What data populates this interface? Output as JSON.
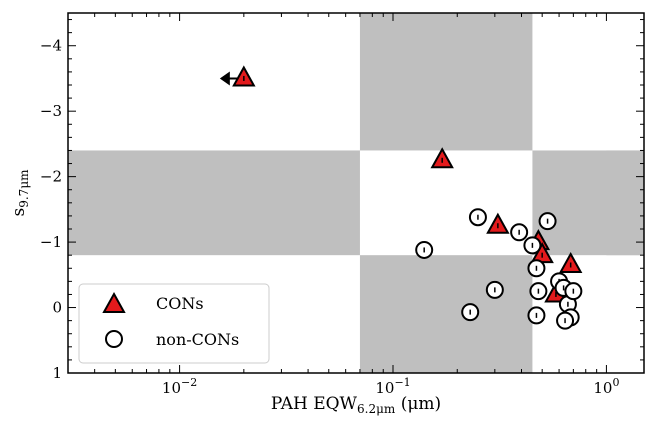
{
  "chart_data": {
    "type": "scatter",
    "xlabel": {
      "main": "PAH EQW",
      "sub": "6.2μm",
      "unit": " (μm)"
    },
    "ylabel": {
      "main": "s",
      "sub": "9.7μm"
    },
    "x_scale": "log",
    "xlim": [
      0.003,
      1.5
    ],
    "ylim": [
      1,
      -4.5
    ],
    "x_ticks": [
      {
        "value": 0.01,
        "base": "10",
        "exp": "−2"
      },
      {
        "value": 0.1,
        "base": "10",
        "exp": "−1"
      },
      {
        "value": 1,
        "base": "10",
        "exp": "0"
      }
    ],
    "y_ticks": [
      {
        "value": -4,
        "label": "−4"
      },
      {
        "value": -3,
        "label": "−3"
      },
      {
        "value": -2,
        "label": "−2"
      },
      {
        "value": -1,
        "label": "−1"
      },
      {
        "value": 0,
        "label": "0"
      },
      {
        "value": 1,
        "label": "1"
      }
    ],
    "shaded_regions": [
      {
        "x": [
          0.07,
          0.45
        ],
        "y": [
          -4.5,
          -2.4
        ]
      },
      {
        "x": [
          0.003,
          0.07
        ],
        "y": [
          -2.4,
          -0.8
        ]
      },
      {
        "x": [
          1.0,
          1.5
        ],
        "y": [
          -2.4,
          -0.8
        ]
      },
      {
        "x": [
          0.45,
          1.5
        ],
        "y": [
          -2.4,
          -0.8
        ]
      },
      {
        "x": [
          0.07,
          0.45
        ],
        "y": [
          -0.8,
          1
        ]
      }
    ],
    "shade_color": "#bfbfbf",
    "legend": {
      "position": "lower-left",
      "entries": [
        "CONs",
        "non-CONs"
      ]
    },
    "series": [
      {
        "name": "CONs",
        "marker": "triangle",
        "color": "#e31a1c",
        "points": [
          {
            "x": 0.02,
            "y": -3.5
          },
          {
            "x": 0.17,
            "y": -2.25
          },
          {
            "x": 0.31,
            "y": -1.25
          },
          {
            "x": 0.48,
            "y": -1.0
          },
          {
            "x": 0.5,
            "y": -0.8
          },
          {
            "x": 0.58,
            "y": -0.2
          },
          {
            "x": 0.68,
            "y": -0.65
          }
        ]
      },
      {
        "name": "non-CONs",
        "marker": "circle",
        "color": "#ffffff",
        "points": [
          {
            "x": 0.14,
            "y": -0.88
          },
          {
            "x": 0.23,
            "y": 0.07
          },
          {
            "x": 0.25,
            "y": -1.38
          },
          {
            "x": 0.3,
            "y": -0.27
          },
          {
            "x": 0.39,
            "y": -1.15
          },
          {
            "x": 0.45,
            "y": -0.95
          },
          {
            "x": 0.47,
            "y": -0.6
          },
          {
            "x": 0.48,
            "y": -0.25
          },
          {
            "x": 0.47,
            "y": 0.12
          },
          {
            "x": 0.53,
            "y": -1.32
          },
          {
            "x": 0.6,
            "y": -0.4
          },
          {
            "x": 0.63,
            "y": -0.3
          },
          {
            "x": 0.66,
            "y": -0.05
          },
          {
            "x": 0.68,
            "y": 0.15
          },
          {
            "x": 0.7,
            "y": -0.25
          },
          {
            "x": 0.64,
            "y": 0.2
          }
        ]
      }
    ],
    "upper_limit_arrows": [
      {
        "x": 0.02,
        "y": -3.5,
        "direction": "left"
      }
    ]
  }
}
